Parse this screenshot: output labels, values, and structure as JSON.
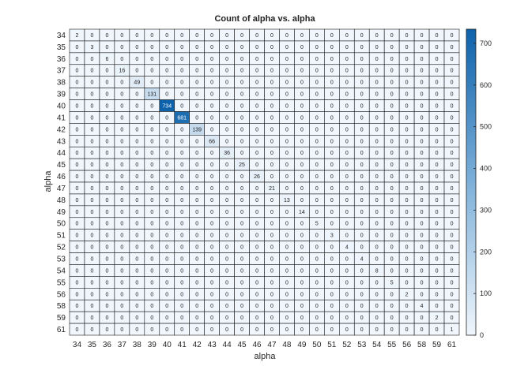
{
  "chart_data": {
    "type": "heatmap",
    "title": "Count of alpha vs. alpha",
    "xlabel": "alpha",
    "ylabel": "alpha",
    "x_categories": [
      "34",
      "35",
      "36",
      "37",
      "38",
      "39",
      "40",
      "41",
      "42",
      "43",
      "44",
      "45",
      "46",
      "47",
      "48",
      "49",
      "50",
      "51",
      "52",
      "53",
      "54",
      "55",
      "56",
      "58",
      "59",
      "61"
    ],
    "y_categories": [
      "34",
      "35",
      "36",
      "37",
      "38",
      "39",
      "40",
      "41",
      "42",
      "43",
      "44",
      "45",
      "46",
      "47",
      "48",
      "49",
      "50",
      "51",
      "52",
      "53",
      "54",
      "55",
      "56",
      "58",
      "59",
      "61"
    ],
    "diagonal_values": [
      2,
      3,
      6,
      16,
      49,
      131,
      734,
      681,
      139,
      66,
      36,
      25,
      26,
      21,
      13,
      14,
      5,
      3,
      4,
      4,
      8,
      5,
      2,
      4,
      2,
      1
    ],
    "colorbar": {
      "range": [
        0,
        734
      ],
      "ticks": [
        0,
        100,
        200,
        300,
        400,
        500,
        600,
        700
      ]
    },
    "colormap": {
      "low": "#f0f6fc",
      "high": "#0d62ab"
    }
  }
}
